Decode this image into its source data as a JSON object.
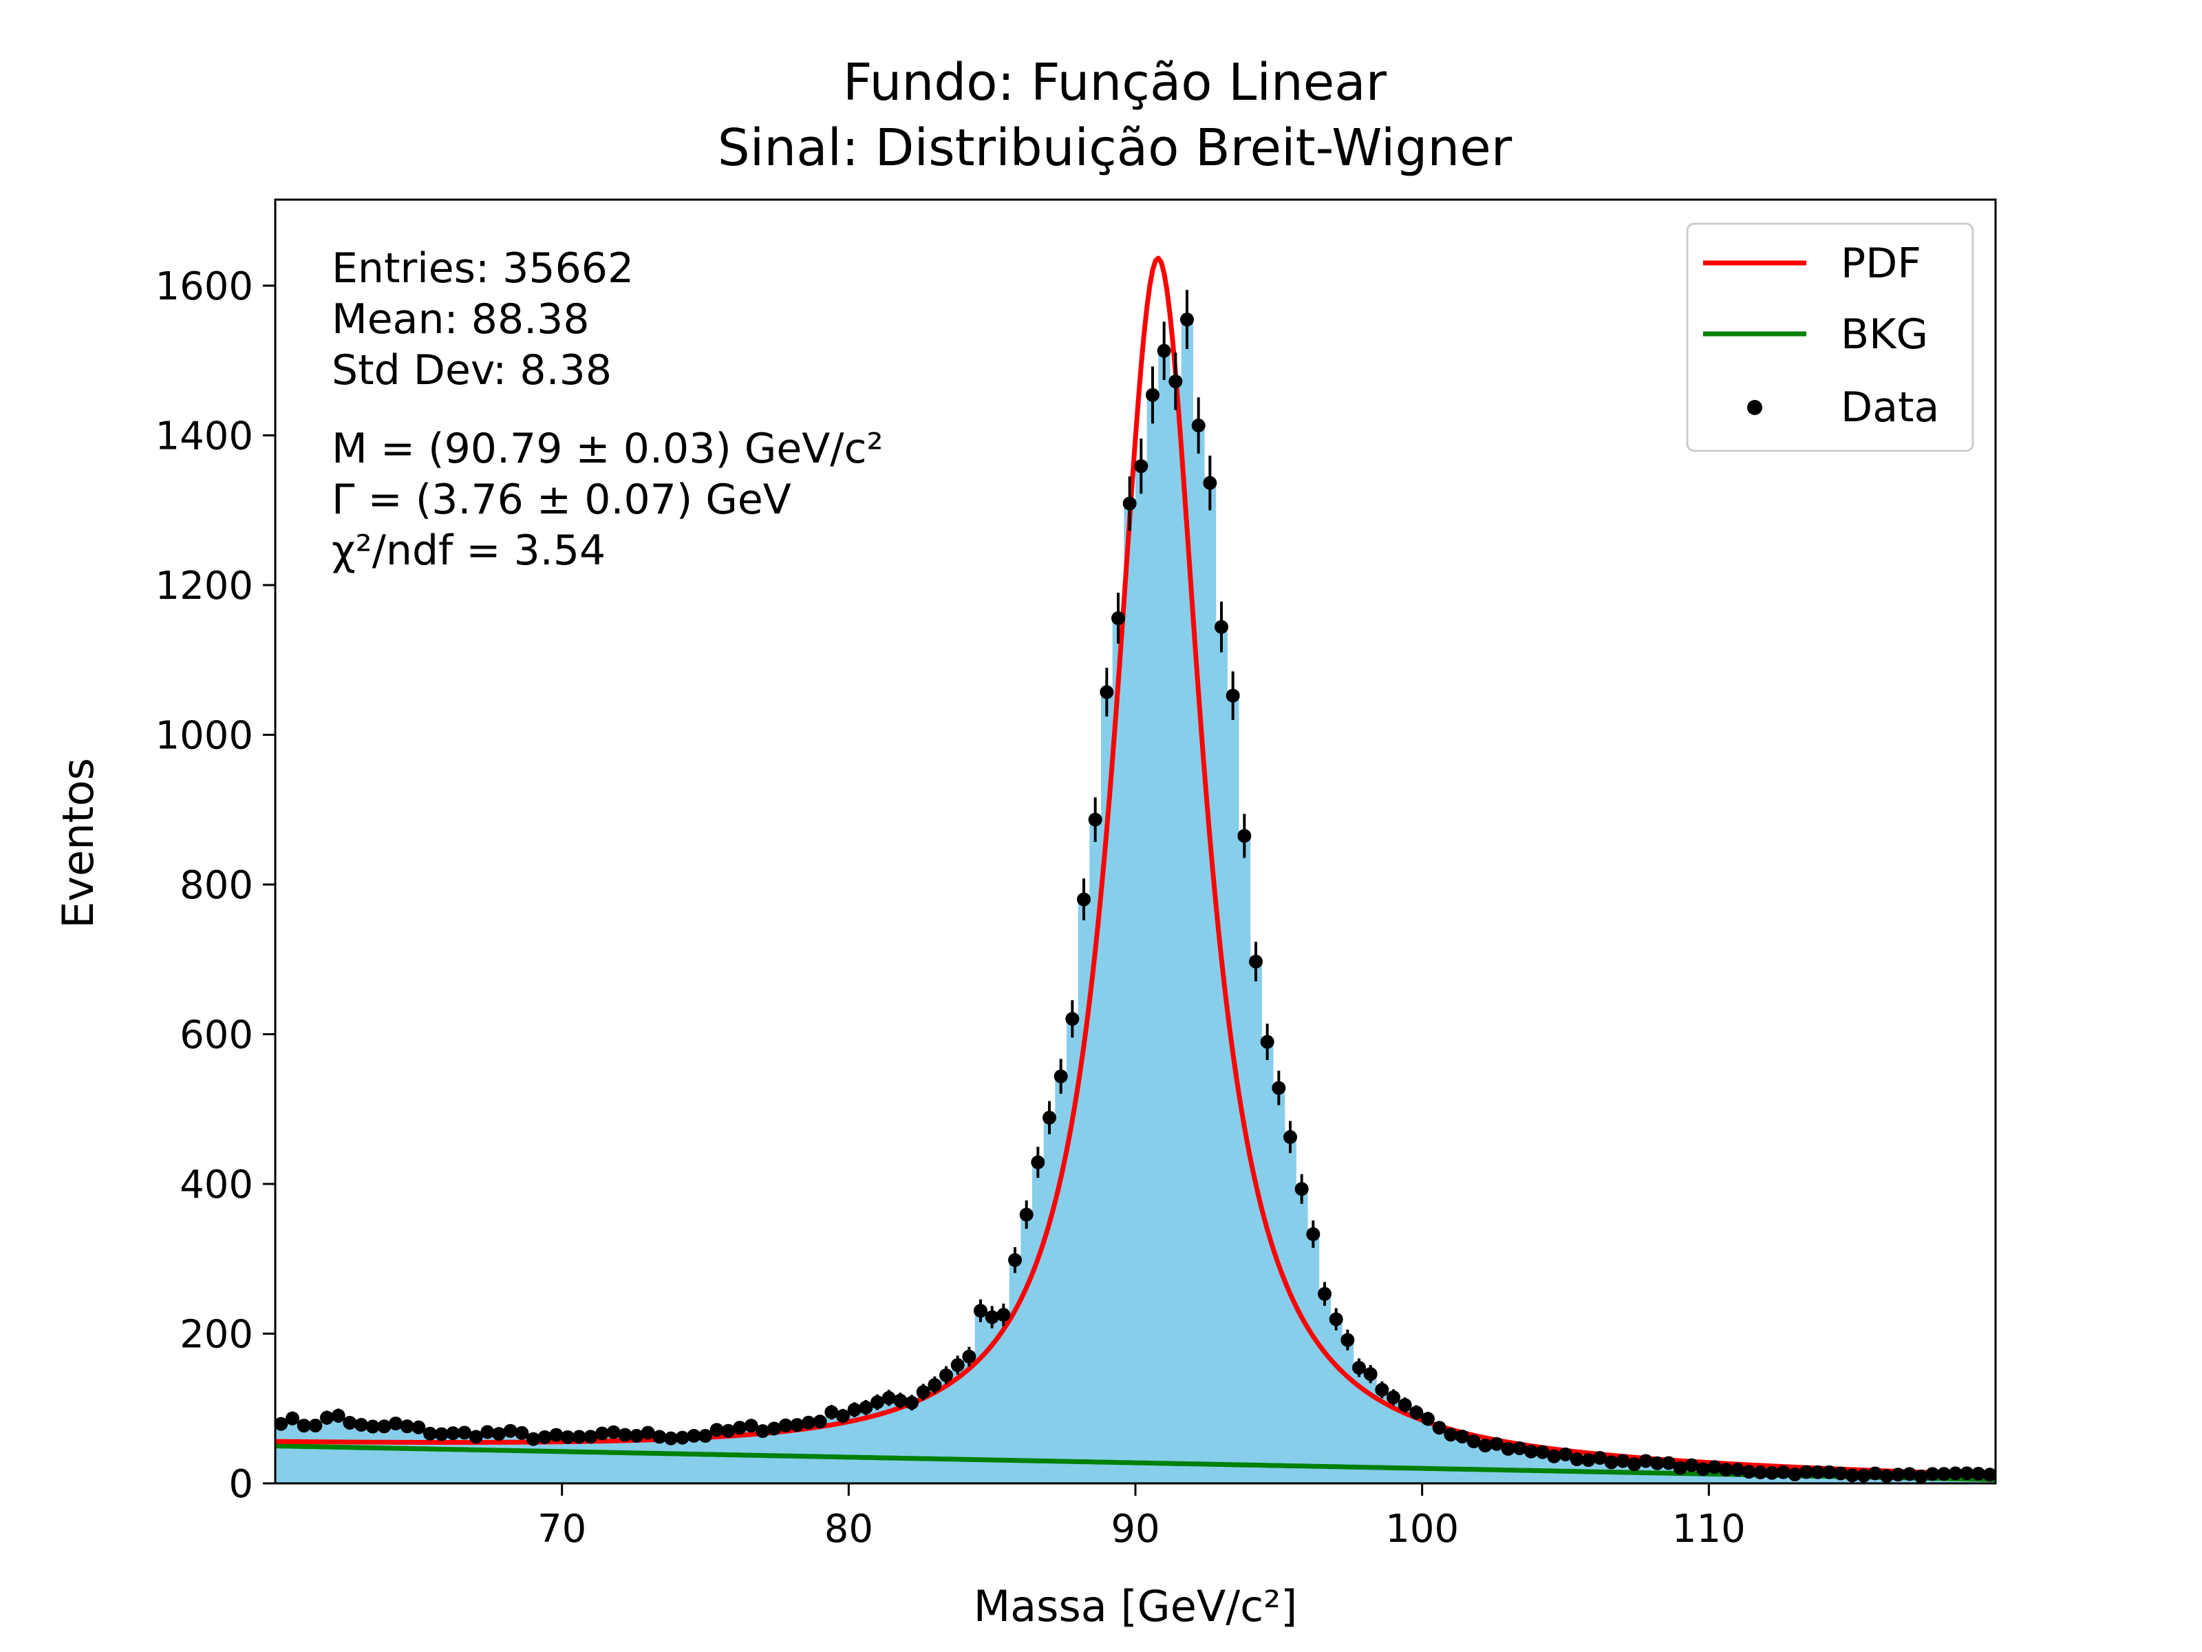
{
  "chart_data": {
    "type": "histogram",
    "title_lines": [
      "Fundo: Função Linear",
      "Sinal: Distribuição Breit-Wigner"
    ],
    "xlabel": "Massa [GeV/c²]",
    "ylabel": "Eventos",
    "xlim": [
      60,
      120
    ],
    "ylim": [
      0,
      1715
    ],
    "x_ticks": [
      70,
      80,
      90,
      100,
      110
    ],
    "y_ticks": [
      0,
      200,
      400,
      600,
      800,
      1000,
      1200,
      1400,
      1600
    ],
    "bin_width": 0.4,
    "stats": [
      "Entries: 35662",
      "Mean: 88.38",
      "Std Dev: 8.38"
    ],
    "fit_results": [
      "M = (90.79 ± 0.03) GeV/c²",
      "Γ = (3.76 ± 0.07) GeV",
      "χ²/ndf = 3.54"
    ],
    "fit_params": {
      "mass": 90.79,
      "width": 3.76,
      "signal_amplitude": 1610,
      "bkg_intercept_at_60": 50,
      "bkg_slope": -0.75
    },
    "legend": {
      "position": "top-right",
      "entries": [
        {
          "label": "PDF",
          "kind": "line",
          "color": "#ff0000"
        },
        {
          "label": "BKG",
          "kind": "line",
          "color": "#008000"
        },
        {
          "label": "Data",
          "kind": "marker",
          "color": "#000000"
        }
      ]
    },
    "colors": {
      "histogram_fill": "#87ceeb",
      "pdf": "#ff0000",
      "bkg": "#008000",
      "data": "#000000"
    },
    "data_anchor_points": [
      [
        60.2,
        85
      ],
      [
        61.2,
        78
      ],
      [
        62.2,
        90
      ],
      [
        63.2,
        72
      ],
      [
        64.2,
        78
      ],
      [
        65.2,
        70
      ],
      [
        66.2,
        65
      ],
      [
        67.2,
        67
      ],
      [
        68.2,
        66
      ],
      [
        69.2,
        62
      ],
      [
        70.2,
        60
      ],
      [
        71.2,
        62
      ],
      [
        72.2,
        66
      ],
      [
        73.2,
        64
      ],
      [
        74.2,
        63
      ],
      [
        75.2,
        66
      ],
      [
        76.2,
        72
      ],
      [
        77.2,
        75
      ],
      [
        78.2,
        78
      ],
      [
        79.2,
        88
      ],
      [
        80.2,
        100
      ],
      [
        81.2,
        108
      ],
      [
        82.2,
        112
      ],
      [
        83.2,
        140
      ],
      [
        84.2,
        172
      ],
      [
        84.6,
        230
      ],
      [
        85.0,
        220
      ],
      [
        85.4,
        230
      ],
      [
        85.8,
        290
      ],
      [
        86.2,
        360
      ],
      [
        86.6,
        420
      ],
      [
        87.0,
        485
      ],
      [
        87.4,
        540
      ],
      [
        87.8,
        620
      ],
      [
        88.2,
        780
      ],
      [
        88.6,
        880
      ],
      [
        89.0,
        1040
      ],
      [
        89.4,
        1160
      ],
      [
        89.8,
        1300
      ],
      [
        90.2,
        1370
      ],
      [
        90.6,
        1450
      ],
      [
        91.0,
        1520
      ],
      [
        91.4,
        1480
      ],
      [
        91.8,
        1560
      ],
      [
        92.2,
        1400
      ],
      [
        92.6,
        1320
      ],
      [
        93.0,
        1160
      ],
      [
        93.4,
        1040
      ],
      [
        93.8,
        880
      ],
      [
        94.2,
        700
      ],
      [
        94.6,
        600
      ],
      [
        95.0,
        540
      ],
      [
        95.4,
        450
      ],
      [
        95.8,
        400
      ],
      [
        96.2,
        330
      ],
      [
        96.6,
        260
      ],
      [
        97.0,
        220
      ],
      [
        97.8,
        160
      ],
      [
        98.6,
        120
      ],
      [
        99.8,
        90
      ],
      [
        101.0,
        70
      ],
      [
        102.2,
        55
      ],
      [
        103.4,
        45
      ],
      [
        104.6,
        38
      ],
      [
        105.8,
        32
      ],
      [
        107.0,
        30
      ],
      [
        108.2,
        26
      ],
      [
        109.4,
        22
      ],
      [
        110.6,
        18
      ],
      [
        111.8,
        16
      ],
      [
        113.0,
        14
      ],
      [
        114.2,
        14
      ],
      [
        115.4,
        12
      ],
      [
        116.6,
        11
      ],
      [
        117.8,
        11
      ],
      [
        119.8,
        12
      ]
    ]
  }
}
